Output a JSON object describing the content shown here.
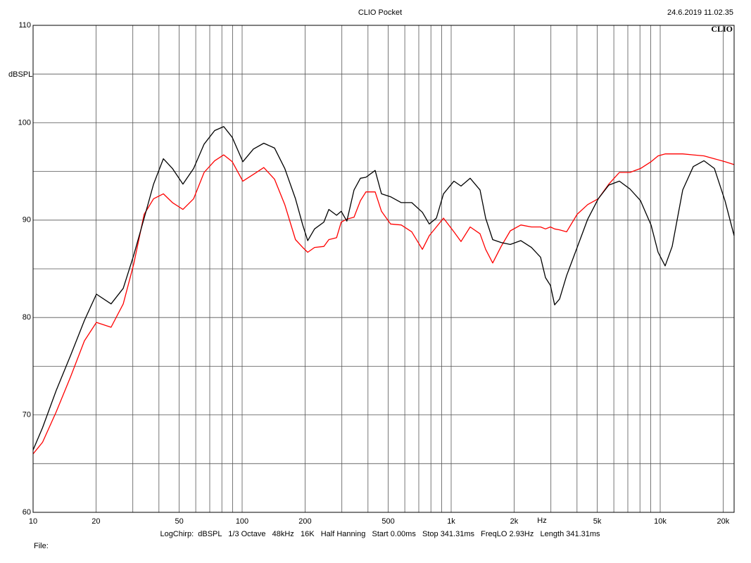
{
  "chart_data": {
    "type": "line",
    "title": "CLIO Pocket",
    "timestamp": "24.6.2019 11.02.35",
    "logo": "CLIO",
    "y_label": "dBSPL",
    "x_label": "Hz",
    "footer": "LogChirp:  dBSPL   1/3 Octave   48kHz   16K   Half Hanning   Start 0.00ms   Stop 341.31ms   FreqLO 2.93Hz   Length 341.31ms",
    "file_label": "File:",
    "x_log": true,
    "grid": true,
    "xlim": [
      10,
      22570
    ],
    "ylim": [
      60,
      110
    ],
    "xticks": [
      10,
      20,
      50,
      100,
      200,
      500,
      {
        "value": 1000,
        "label": "1k"
      },
      {
        "value": 2000,
        "label": "2k"
      },
      {
        "value": 5000,
        "label": "5k"
      },
      {
        "value": 10000,
        "label": "10k"
      },
      {
        "value": 20000,
        "label": "20k"
      }
    ],
    "minor_xticks": [
      30,
      40,
      60,
      70,
      80,
      90,
      300,
      400,
      600,
      700,
      800,
      900,
      3000,
      4000,
      6000,
      7000,
      8000,
      9000
    ],
    "yticks": [
      60,
      70,
      80,
      90,
      100,
      110
    ],
    "minor_yticks": [
      65,
      75,
      85,
      95,
      105
    ],
    "x": [
      10,
      11.1,
      12.9,
      15.1,
      17.6,
      20.1,
      23.6,
      27.0,
      30.3,
      34.0,
      37.7,
      42.0,
      46.4,
      52.1,
      58.6,
      65.8,
      73.9,
      81.7,
      89.7,
      100.8,
      113.2,
      127,
      143,
      160,
      180,
      195,
      206,
      222,
      246,
      260,
      283,
      298,
      317,
      343,
      368,
      391,
      433,
      464,
      513,
      577,
      648,
      728,
      786,
      850,
      919,
      1031,
      1115,
      1233,
      1374,
      1462,
      1580,
      1734,
      1918,
      2154,
      2420,
      2677,
      2827,
      2984,
      3126,
      3300,
      3566,
      4005,
      4500,
      5055,
      5679,
      6380,
      7165,
      8050,
      9040,
      9770,
      10560,
      11410,
      12820,
      14400,
      16180,
      18170,
      20410,
      22570
    ],
    "series": [
      {
        "color": "#000000",
        "values": [
          66.4,
          68.7,
          72.5,
          76.1,
          79.7,
          82.4,
          81.4,
          83.0,
          86.4,
          90.2,
          93.7,
          96.3,
          95.3,
          93.7,
          95.3,
          97.8,
          99.2,
          99.6,
          98.5,
          96.0,
          97.3,
          97.9,
          97.4,
          95.3,
          92.2,
          89.5,
          87.9,
          89.1,
          89.8,
          91.1,
          90.5,
          90.9,
          89.9,
          93.1,
          94.3,
          94.4,
          95.1,
          92.7,
          92.4,
          91.8,
          91.8,
          90.8,
          89.6,
          90.2,
          92.7,
          94.0,
          93.5,
          94.3,
          93.1,
          90.2,
          88.0,
          87.7,
          87.5,
          87.9,
          87.2,
          86.2,
          84.1,
          83.3,
          81.3,
          81.9,
          84.3,
          87.2,
          90.1,
          92.2,
          93.6,
          94.0,
          93.2,
          92.0,
          89.5,
          86.7,
          85.3,
          87.3,
          93.1,
          95.5,
          96.1,
          95.3,
          92.0,
          88.4
        ]
      },
      {
        "color": "#ff0000",
        "values": [
          66.0,
          67.2,
          70.3,
          73.9,
          77.6,
          79.5,
          79.0,
          81.4,
          85.5,
          90.6,
          92.2,
          92.7,
          91.8,
          91.1,
          92.2,
          94.9,
          96.1,
          96.7,
          96.0,
          94.0,
          94.7,
          95.4,
          94.2,
          91.6,
          88.0,
          87.2,
          86.7,
          87.2,
          87.3,
          88.0,
          88.2,
          89.8,
          90.1,
          90.3,
          92.0,
          92.9,
          92.9,
          90.9,
          89.6,
          89.5,
          88.8,
          87.0,
          88.4,
          89.3,
          90.2,
          88.8,
          87.8,
          89.3,
          88.6,
          87.0,
          85.6,
          87.3,
          88.9,
          89.5,
          89.3,
          89.3,
          89.1,
          89.3,
          89.1,
          89.0,
          88.8,
          90.6,
          91.6,
          92.2,
          93.7,
          94.9,
          94.9,
          95.3,
          96.0,
          96.6,
          96.8,
          96.8,
          96.8,
          96.7,
          96.6,
          96.3,
          96.0,
          95.7
        ]
      }
    ]
  }
}
